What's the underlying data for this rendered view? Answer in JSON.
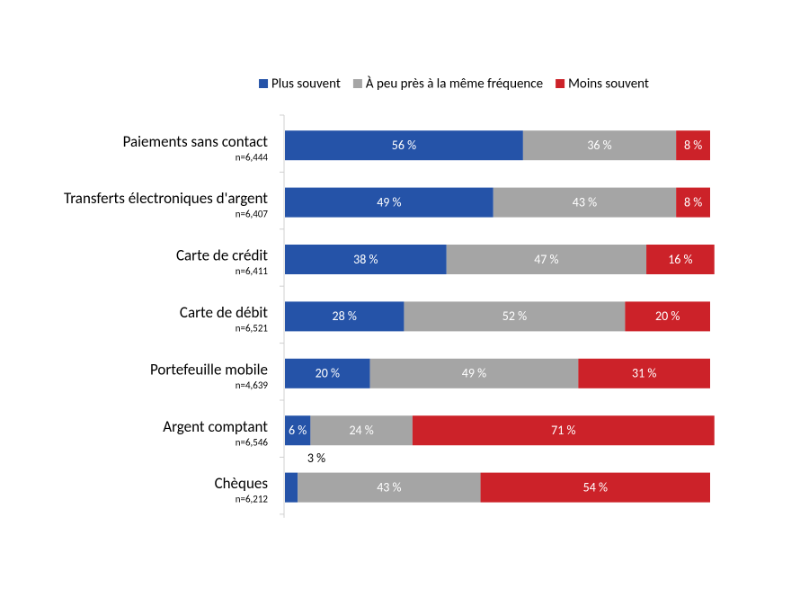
{
  "chart_data": {
    "type": "stacked-bar-horizontal",
    "categories": [
      "Paiements sans contact",
      "Transferts électroniques d'argent",
      "Carte de crédit",
      "Carte de débit",
      "Portefeuille mobile",
      "Argent comptant",
      "Chèques"
    ],
    "sample_sizes": [
      "n=6,444",
      "n=6,407",
      "n=6,411",
      "n=6,521",
      "n=4,639",
      "n=6,546",
      "n=6,212"
    ],
    "xlim": [
      0,
      100
    ],
    "legend": "top",
    "series": [
      {
        "name": "Plus souvent",
        "color": "#2553a8",
        "values": [
          56,
          49,
          38,
          28,
          20,
          6,
          3
        ],
        "value_labels": [
          "56 %",
          "49 %",
          "38 %",
          "28 %",
          "20 %",
          "6 %",
          "3 %"
        ]
      },
      {
        "name": "À peu près à la même fréquence",
        "color": "#a5a5a5",
        "values": [
          36,
          43,
          47,
          52,
          49,
          24,
          43
        ],
        "value_labels": [
          "36 %",
          "43 %",
          "47 %",
          "52 %",
          "49 %",
          "24 %",
          "43 %"
        ]
      },
      {
        "name": "Moins souvent",
        "color": "#cc2229",
        "values": [
          8,
          8,
          16,
          20,
          31,
          71,
          54
        ],
        "value_labels": [
          "8 %",
          "8 %",
          "16 %",
          "20 %",
          "31 %",
          "71 %",
          "54 %"
        ]
      }
    ]
  }
}
